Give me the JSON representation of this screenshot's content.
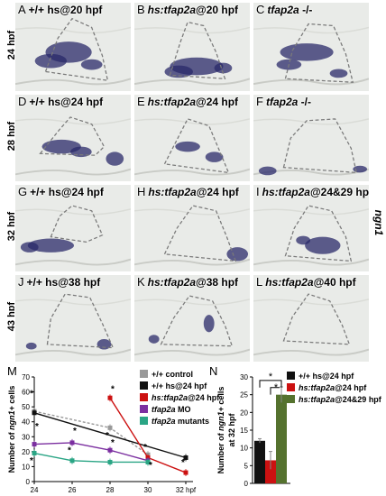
{
  "figure": {
    "rows": [
      {
        "label": "24 hpf"
      },
      {
        "label": "28 hpf"
      },
      {
        "label": "32 hpf"
      },
      {
        "label": "43 hpf"
      }
    ],
    "side_label": "ngn1",
    "panels": [
      {
        "letter": "A",
        "pre": "+/+ hs@20 hpf",
        "italic": "",
        "post": ""
      },
      {
        "letter": "B",
        "pre": "",
        "italic": "hs:tfap2a",
        "post": "@20 hpf"
      },
      {
        "letter": "C",
        "pre": "",
        "italic": "tfap2a",
        "post": " -/-"
      },
      {
        "letter": "D",
        "pre": "+/+ hs@24 hpf",
        "italic": "",
        "post": ""
      },
      {
        "letter": "E",
        "pre": "",
        "italic": "hs:tfap2a",
        "post": "@24 hpf"
      },
      {
        "letter": "F",
        "pre": "",
        "italic": "tfap2a",
        "post": " -/-"
      },
      {
        "letter": "G",
        "pre": "+/+ hs@24 hpf",
        "italic": "",
        "post": ""
      },
      {
        "letter": "H",
        "pre": "",
        "italic": "hs:tfap2a",
        "post": "@24 hpf"
      },
      {
        "letter": "I",
        "pre": "",
        "italic": "hs:tfap2a",
        "post": "@24&29 hpf"
      },
      {
        "letter": "J",
        "pre": "+/+ hs@38 hpf",
        "italic": "",
        "post": ""
      },
      {
        "letter": "K",
        "pre": "",
        "italic": "hs:tfap2a",
        "post": "@38 hpf"
      },
      {
        "letter": "L",
        "pre": "",
        "italic": "hs:tfap2a",
        "post": "@40 hpf"
      }
    ],
    "stain_colors": {
      "stain": "#2a2a6a",
      "outline": "#7a7a7a",
      "tissue": "#e9ebe8"
    }
  },
  "chart_data": [
    {
      "id": "M",
      "type": "line",
      "letter": "M",
      "xlabel": "hpf",
      "ylabel": "Number of ngn1+ cells",
      "ylabel_parts": {
        "pre": "Number of ",
        "italic": "ngn1+",
        "post": " cells"
      },
      "x": [
        24,
        26,
        28,
        30,
        32
      ],
      "xlim": [
        24,
        32
      ],
      "ylim": [
        0,
        70
      ],
      "yticks": [
        0,
        10,
        20,
        30,
        40,
        50,
        60,
        70
      ],
      "series": [
        {
          "name": "+/+ control",
          "color": "#999999",
          "dashed": true,
          "x": [
            24,
            28,
            30
          ],
          "values": [
            47,
            36,
            18
          ]
        },
        {
          "name": "+/+ hs@24 hpf",
          "color": "#111111",
          "dashed": false,
          "x": [
            24,
            32
          ],
          "values": [
            46,
            16
          ]
        },
        {
          "name": "hs:tfap2a@24 hpf",
          "color": "#cc1111",
          "dashed": false,
          "x": [
            28,
            30,
            32
          ],
          "values": [
            56,
            16,
            6
          ]
        },
        {
          "name": "tfap2a MO",
          "color": "#7b2fa0",
          "dashed": false,
          "x": [
            24,
            26,
            28,
            30
          ],
          "values": [
            25,
            26,
            21,
            14
          ]
        },
        {
          "name": "tfap2a mutants",
          "color": "#2aa585",
          "dashed": false,
          "x": [
            24,
            26,
            28,
            30
          ],
          "values": [
            19,
            14,
            13,
            13
          ]
        }
      ],
      "legend": [
        {
          "pre": "+/+ control",
          "italic": "",
          "post": ""
        },
        {
          "pre": "+/+ hs@24 hpf",
          "italic": "",
          "post": ""
        },
        {
          "pre": "",
          "italic": "hs:tfap2a",
          "post": "@24 hpf"
        },
        {
          "pre": "",
          "italic": "tfap2a",
          "post": " MO"
        },
        {
          "pre": "",
          "italic": "tfap2a",
          "post": " mutants"
        }
      ],
      "annotations": [
        "*",
        "*",
        "*",
        "*",
        "*",
        "*",
        "*",
        "*",
        "*",
        "*",
        "*"
      ]
    },
    {
      "id": "N",
      "type": "bar",
      "letter": "N",
      "ylabel_line1_parts": {
        "pre": "Number of ",
        "italic": "ngn1+",
        "post": " cells"
      },
      "ylabel_line2": "at 32 hpf",
      "categories": [
        "+/+ hs@24 hpf",
        "hs:tfap2a@24 hpf",
        "hs:tfap2a@24&29 hpf"
      ],
      "values": [
        12,
        6.5,
        25
      ],
      "errors": [
        0.6,
        2.5,
        2.2
      ],
      "colors": [
        "#111111",
        "#cc1111",
        "#55722e"
      ],
      "ylim": [
        0,
        30
      ],
      "yticks": [
        0,
        5,
        10,
        15,
        20,
        25,
        30
      ],
      "legend": [
        {
          "pre": "+/+ hs@24 hpf",
          "italic": "",
          "post": ""
        },
        {
          "pre": "",
          "italic": "hs:tfap2a",
          "post": "@24 hpf"
        },
        {
          "pre": "",
          "italic": "hs:tfap2a",
          "post": "@24&29 hpf"
        }
      ],
      "significance": [
        "*",
        "*"
      ]
    }
  ]
}
